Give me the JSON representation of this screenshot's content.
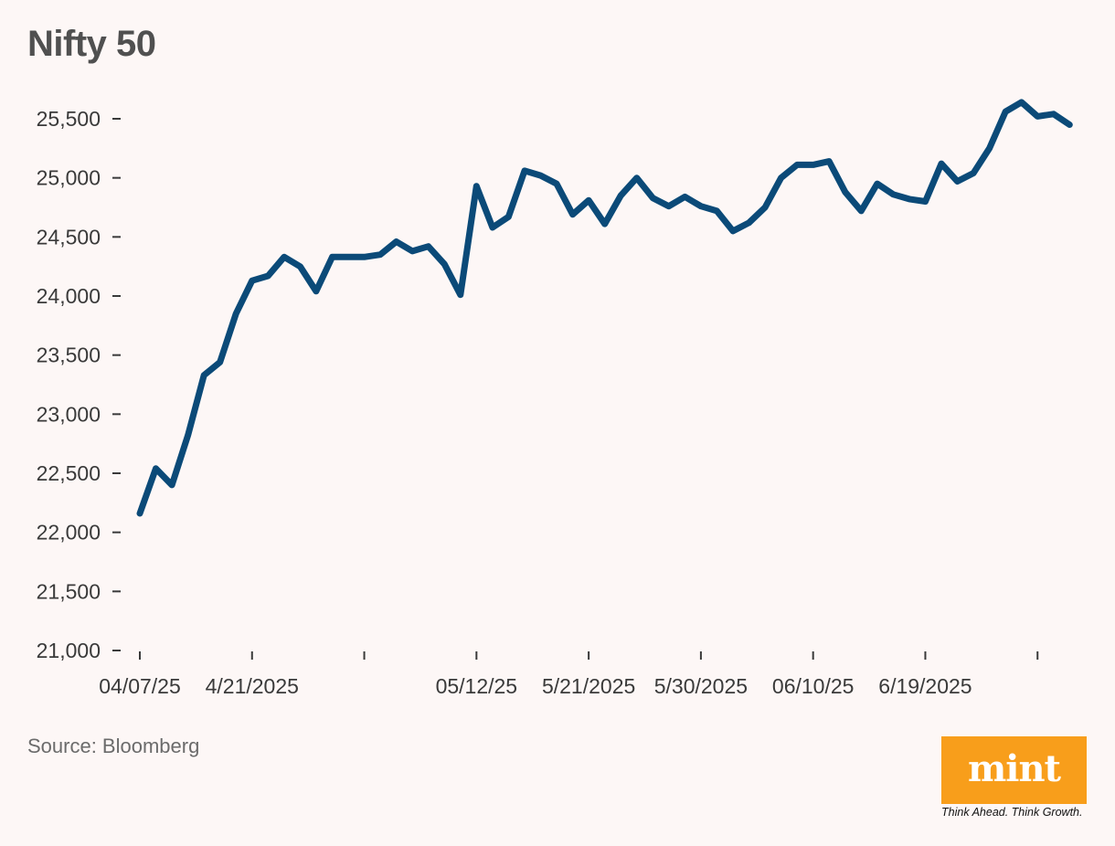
{
  "title": "Nifty 50",
  "source": "Source: Bloomberg",
  "logo": {
    "text": "mint",
    "tagline": "Think Ahead. Think Growth.",
    "color": "#f89e1b"
  },
  "colors": {
    "line": "#0b4a78",
    "background": "#fdf7f6"
  },
  "chart_data": {
    "type": "line",
    "title": "Nifty 50",
    "xlabel": "",
    "ylabel": "",
    "ylim": [
      21000,
      25500
    ],
    "yticks": [
      21000,
      21500,
      22000,
      22500,
      23000,
      23500,
      24000,
      24500,
      25000,
      25500
    ],
    "ytick_labels": [
      "21,000",
      "21,500",
      "22,000",
      "22,500",
      "23,000",
      "23,500",
      "24,000",
      "24,500",
      "25,000",
      "25,500"
    ],
    "xtick_labels": [
      "04/07/25",
      "4/21/2025",
      "",
      "05/12/25",
      "5/21/2025",
      "5/30/2025",
      "06/10/25",
      "6/19/2025",
      ""
    ],
    "xtick_positions": [
      0,
      7,
      14,
      21,
      28,
      35,
      42,
      49,
      56
    ],
    "grid": false,
    "legend": "none",
    "series": [
      {
        "values": [
          22160,
          22540,
          22400,
          22820,
          23330,
          23440,
          23850,
          24130,
          24170,
          24330,
          24250,
          24040,
          24330,
          24330,
          24330,
          24350,
          24460,
          24380,
          24420,
          24270,
          24010,
          24930,
          24580,
          24670,
          25060,
          25020,
          24950,
          24690,
          24810,
          24610,
          24850,
          25000,
          24830,
          24760,
          24840,
          24760,
          24720,
          24550,
          24620,
          24750,
          25000,
          25110,
          25110,
          25140,
          24880,
          24720,
          24950,
          24860,
          24820,
          24800,
          25120,
          24970,
          25040,
          25250,
          25560,
          25640,
          25520,
          25540,
          25450
        ]
      }
    ]
  }
}
